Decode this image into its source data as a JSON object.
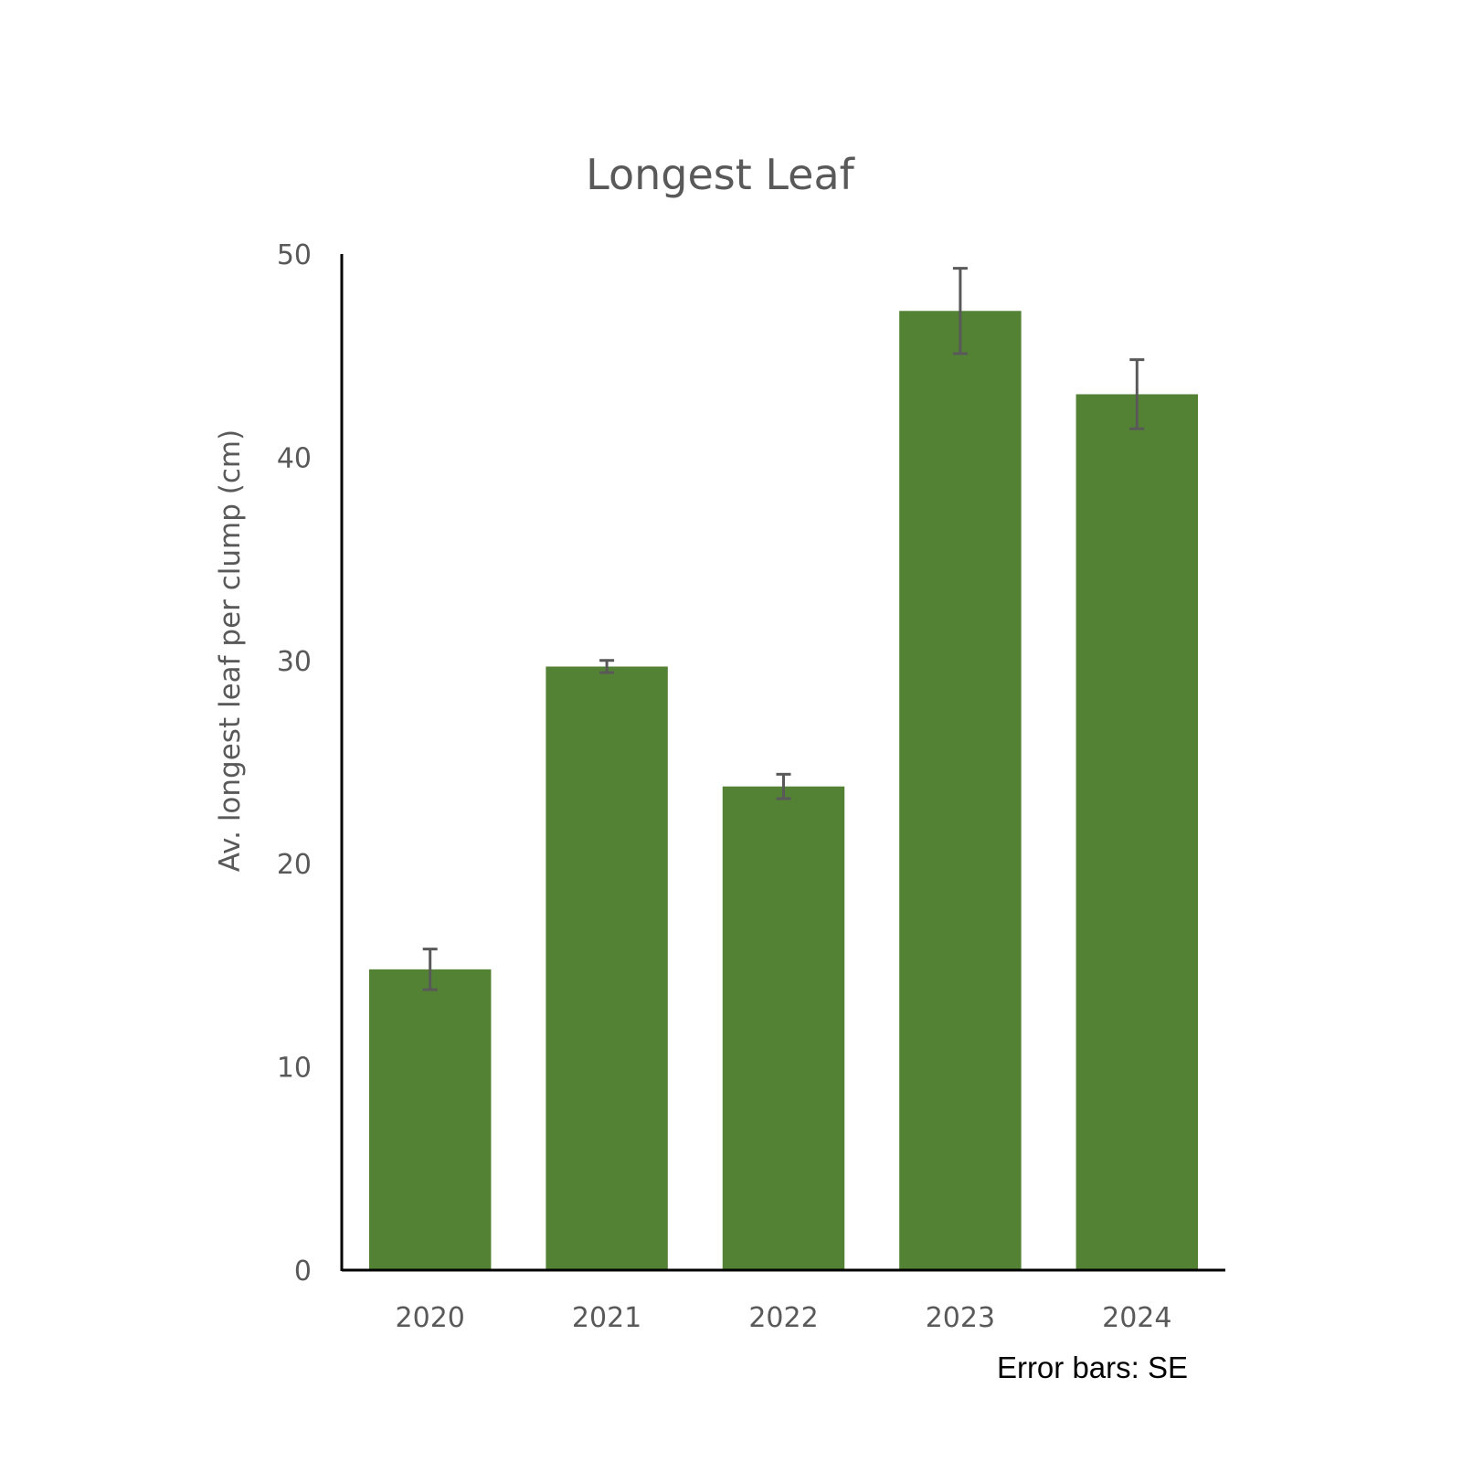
{
  "chart_data": {
    "type": "bar",
    "title": "Longest Leaf",
    "xlabel": "",
    "ylabel": "Av. longest leaf per clump (cm)",
    "categories": [
      "2020",
      "2021",
      "2022",
      "2023",
      "2024"
    ],
    "values": [
      14.8,
      29.7,
      23.8,
      47.2,
      43.1
    ],
    "error": [
      1.0,
      0.3,
      0.6,
      2.1,
      1.7
    ],
    "error_label": "Error bars: SE",
    "ylim": [
      0,
      50
    ],
    "yticks": [
      "0",
      "10",
      "20",
      "30",
      "40",
      "50"
    ],
    "grid": false,
    "legend": "none",
    "colors": {
      "bar": "#548235",
      "error": "#595959",
      "axis": "#000000"
    }
  }
}
